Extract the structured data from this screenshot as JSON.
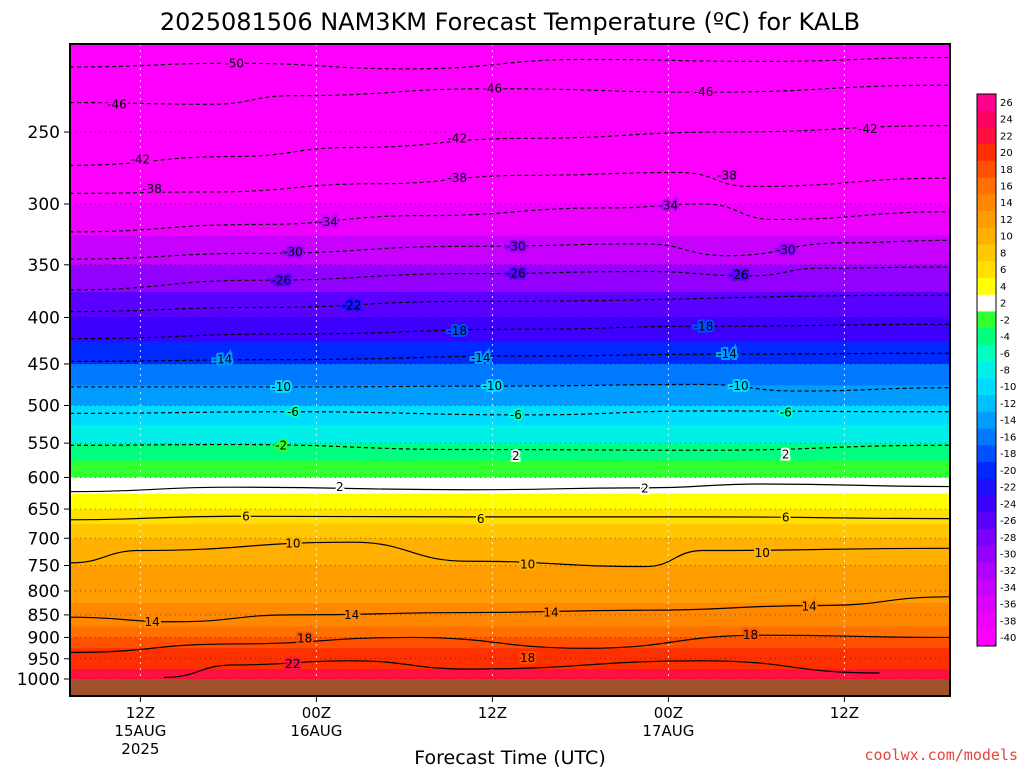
{
  "chart_data": {
    "type": "heatmap",
    "title": "2025081506 NAM3KM Forecast Temperature (ºC) for KALB",
    "xlabel": "Forecast Time (UTC)",
    "ylabel": "",
    "credit": "coolwx.com/models",
    "y_axis": {
      "scale": "log",
      "reversed": true,
      "range": [
        1000,
        200
      ],
      "ticks": [
        250,
        300,
        350,
        400,
        450,
        500,
        550,
        600,
        650,
        700,
        750,
        800,
        850,
        900,
        950,
        1000
      ]
    },
    "x_axis": {
      "range_hours": [
        6,
        81
      ],
      "ticks": [
        {
          "hour": 12,
          "lines": [
            "12Z",
            "15AUG",
            "2025"
          ]
        },
        {
          "hour": 27,
          "lines": [
            "00Z",
            "16AUG"
          ]
        },
        {
          "hour": 42,
          "lines": [
            "12Z"
          ]
        },
        {
          "hour": 57,
          "lines": [
            "00Z",
            "17AUG"
          ]
        },
        {
          "hour": 72,
          "lines": [
            "12Z"
          ]
        }
      ]
    },
    "colorbar": {
      "levels": [
        -40,
        -38,
        -36,
        -34,
        -32,
        -30,
        -28,
        -26,
        -24,
        -22,
        -20,
        -18,
        -16,
        -14,
        -12,
        -10,
        -8,
        -6,
        -4,
        -2,
        2,
        4,
        6,
        8,
        10,
        12,
        14,
        16,
        18,
        20,
        22,
        24,
        26
      ],
      "colors": [
        "#ff00ff",
        "#ee00ff",
        "#dd00ff",
        "#c800ff",
        "#b000ff",
        "#9400ff",
        "#7a00ff",
        "#5a00ff",
        "#3c00ff",
        "#1e10ff",
        "#0028ff",
        "#0050ff",
        "#0078ff",
        "#009cff",
        "#00c0ff",
        "#00dcff",
        "#00f0e8",
        "#00ffc0",
        "#00ff80",
        "#30ff30",
        "#ffffff",
        "#ffff00",
        "#ffe000",
        "#ffc800",
        "#ffb000",
        "#ff9c00",
        "#ff8800",
        "#ff7000",
        "#ff5000",
        "#ff3000",
        "#ff1040",
        "#ff0060",
        "#ff0090"
      ]
    },
    "profile": {
      "pressure_hpa": [
        200,
        225,
        250,
        275,
        300,
        325,
        350,
        375,
        400,
        425,
        450,
        475,
        500,
        525,
        550,
        575,
        600,
        625,
        650,
        675,
        700,
        725,
        750,
        775,
        800,
        825,
        850,
        875,
        900,
        925,
        950,
        975,
        1000
      ],
      "temperature_c": [
        -56,
        -52,
        -48,
        -44,
        -40,
        -36,
        -32,
        -28,
        -24,
        -21,
        -17,
        -14,
        -11,
        -8,
        -5,
        -1,
        2,
        4,
        6,
        8,
        10,
        11,
        12,
        13,
        13.5,
        14,
        15,
        16,
        17.5,
        19,
        21,
        22,
        23
      ]
    },
    "contours": [
      {
        "level": -50,
        "points": [
          [
            6,
            212
          ],
          [
            20,
            210
          ],
          [
            35,
            213
          ],
          [
            50,
            208
          ],
          [
            65,
            209
          ],
          [
            81,
            207
          ]
        ],
        "labels": [
          [
            20,
            210
          ]
        ]
      },
      {
        "level": -46,
        "points": [
          [
            6,
            232
          ],
          [
            18,
            233
          ],
          [
            25,
            228
          ],
          [
            42,
            224
          ],
          [
            60,
            226
          ],
          [
            81,
            222
          ]
        ],
        "labels": [
          [
            10,
            233
          ],
          [
            42,
            224
          ],
          [
            60,
            226
          ]
        ]
      },
      {
        "level": -42,
        "points": [
          [
            6,
            272
          ],
          [
            20,
            266
          ],
          [
            30,
            260
          ],
          [
            45,
            254
          ],
          [
            62,
            250
          ],
          [
            81,
            246
          ]
        ],
        "labels": [
          [
            12,
            268
          ],
          [
            39,
            254
          ],
          [
            74,
            248
          ]
        ]
      },
      {
        "level": -38,
        "points": [
          [
            6,
            292
          ],
          [
            18,
            291
          ],
          [
            32,
            285
          ],
          [
            45,
            279
          ],
          [
            58,
            277
          ],
          [
            64,
            287
          ],
          [
            81,
            281
          ]
        ],
        "labels": [
          [
            13,
            289
          ],
          [
            39,
            281
          ],
          [
            62,
            279
          ]
        ]
      },
      {
        "level": -34,
        "points": [
          [
            6,
            322
          ],
          [
            22,
            316
          ],
          [
            36,
            309
          ],
          [
            52,
            303
          ],
          [
            60,
            300
          ],
          [
            66,
            312
          ],
          [
            81,
            306
          ]
        ],
        "labels": [
          [
            28,
            314
          ],
          [
            57,
            301
          ]
        ]
      },
      {
        "level": -30,
        "points": [
          [
            6,
            345
          ],
          [
            22,
            340
          ],
          [
            40,
            334
          ],
          [
            55,
            332
          ],
          [
            62,
            342
          ],
          [
            72,
            331
          ],
          [
            81,
            329
          ]
        ],
        "labels": [
          [
            25,
            339
          ],
          [
            44,
            334
          ],
          [
            67,
            337
          ]
        ]
      },
      {
        "level": -26,
        "points": [
          [
            6,
            373
          ],
          [
            22,
            364
          ],
          [
            40,
            358
          ],
          [
            55,
            356
          ],
          [
            64,
            360
          ],
          [
            70,
            353
          ],
          [
            81,
            352
          ]
        ],
        "labels": [
          [
            24,
            364
          ],
          [
            44,
            358
          ],
          [
            63,
            359
          ]
        ]
      },
      {
        "level": -22,
        "points": [
          [
            6,
            394
          ],
          [
            22,
            390
          ],
          [
            40,
            384
          ],
          [
            81,
            378
          ]
        ],
        "labels": [
          [
            30,
            388
          ]
        ]
      },
      {
        "level": -18,
        "points": [
          [
            6,
            422
          ],
          [
            25,
            417
          ],
          [
            45,
            412
          ],
          [
            60,
            409
          ],
          [
            81,
            407
          ]
        ],
        "labels": [
          [
            39,
            414
          ],
          [
            60,
            409
          ]
        ]
      },
      {
        "level": -14,
        "points": [
          [
            6,
            447
          ],
          [
            25,
            445
          ],
          [
            45,
            441
          ],
          [
            62,
            439
          ],
          [
            81,
            438
          ]
        ],
        "labels": [
          [
            19,
            445
          ],
          [
            41,
            443
          ],
          [
            62,
            439
          ]
        ]
      },
      {
        "level": -10,
        "points": [
          [
            6,
            477
          ],
          [
            25,
            477
          ],
          [
            42,
            476
          ],
          [
            60,
            474
          ],
          [
            68,
            482
          ],
          [
            81,
            478
          ]
        ],
        "labels": [
          [
            24,
            477
          ],
          [
            42,
            476
          ],
          [
            63,
            476
          ]
        ]
      },
      {
        "level": -6,
        "points": [
          [
            6,
            510
          ],
          [
            25,
            508
          ],
          [
            45,
            512
          ],
          [
            60,
            507
          ],
          [
            81,
            508
          ]
        ],
        "labels": [
          [
            25,
            508
          ],
          [
            44,
            512
          ],
          [
            67,
            509
          ]
        ]
      },
      {
        "level": -2,
        "points": [
          [
            6,
            553
          ],
          [
            20,
            552
          ],
          [
            40,
            559
          ],
          [
            60,
            560
          ],
          [
            81,
            553
          ]
        ],
        "labels": [
          [
            24,
            553
          ]
        ]
      },
      {
        "level": 2,
        "points": [
          [
            6,
            622
          ],
          [
            20,
            615
          ],
          [
            40,
            619
          ],
          [
            55,
            616
          ],
          [
            65,
            610
          ],
          [
            81,
            614
          ]
        ],
        "labels": [
          [
            29,
            615
          ],
          [
            44,
            568
          ],
          [
            55,
            617
          ],
          [
            67,
            566
          ]
        ]
      },
      {
        "level": 6,
        "points": [
          [
            6,
            668
          ],
          [
            20,
            662
          ],
          [
            40,
            663
          ],
          [
            60,
            663
          ],
          [
            81,
            666
          ]
        ],
        "labels": [
          [
            21,
            662
          ],
          [
            41,
            667
          ],
          [
            67,
            664
          ]
        ]
      },
      {
        "level": 10,
        "points": [
          [
            6,
            745
          ],
          [
            12,
            722
          ],
          [
            30,
            707
          ],
          [
            40,
            742
          ],
          [
            55,
            752
          ],
          [
            60,
            722
          ],
          [
            81,
            718
          ]
        ],
        "labels": [
          [
            25,
            709
          ],
          [
            45,
            748
          ],
          [
            65,
            727
          ]
        ]
      },
      {
        "level": 14,
        "points": [
          [
            6,
            855
          ],
          [
            15,
            865
          ],
          [
            25,
            850
          ],
          [
            40,
            845
          ],
          [
            55,
            840
          ],
          [
            70,
            830
          ],
          [
            81,
            812
          ]
        ],
        "labels": [
          [
            13,
            866
          ],
          [
            30,
            850
          ],
          [
            47,
            845
          ],
          [
            69,
            832
          ]
        ]
      },
      {
        "level": 18,
        "points": [
          [
            6,
            935
          ],
          [
            20,
            915
          ],
          [
            35,
            900
          ],
          [
            50,
            925
          ],
          [
            65,
            895
          ],
          [
            81,
            900
          ]
        ],
        "labels": [
          [
            26,
            902
          ],
          [
            45,
            948
          ],
          [
            64,
            895
          ]
        ]
      },
      {
        "level": 22,
        "points": [
          [
            14,
            996
          ],
          [
            20,
            965
          ],
          [
            30,
            955
          ],
          [
            40,
            975
          ],
          [
            60,
            955
          ],
          [
            75,
            985
          ]
        ],
        "labels": [
          [
            25,
            963
          ]
        ]
      }
    ]
  }
}
